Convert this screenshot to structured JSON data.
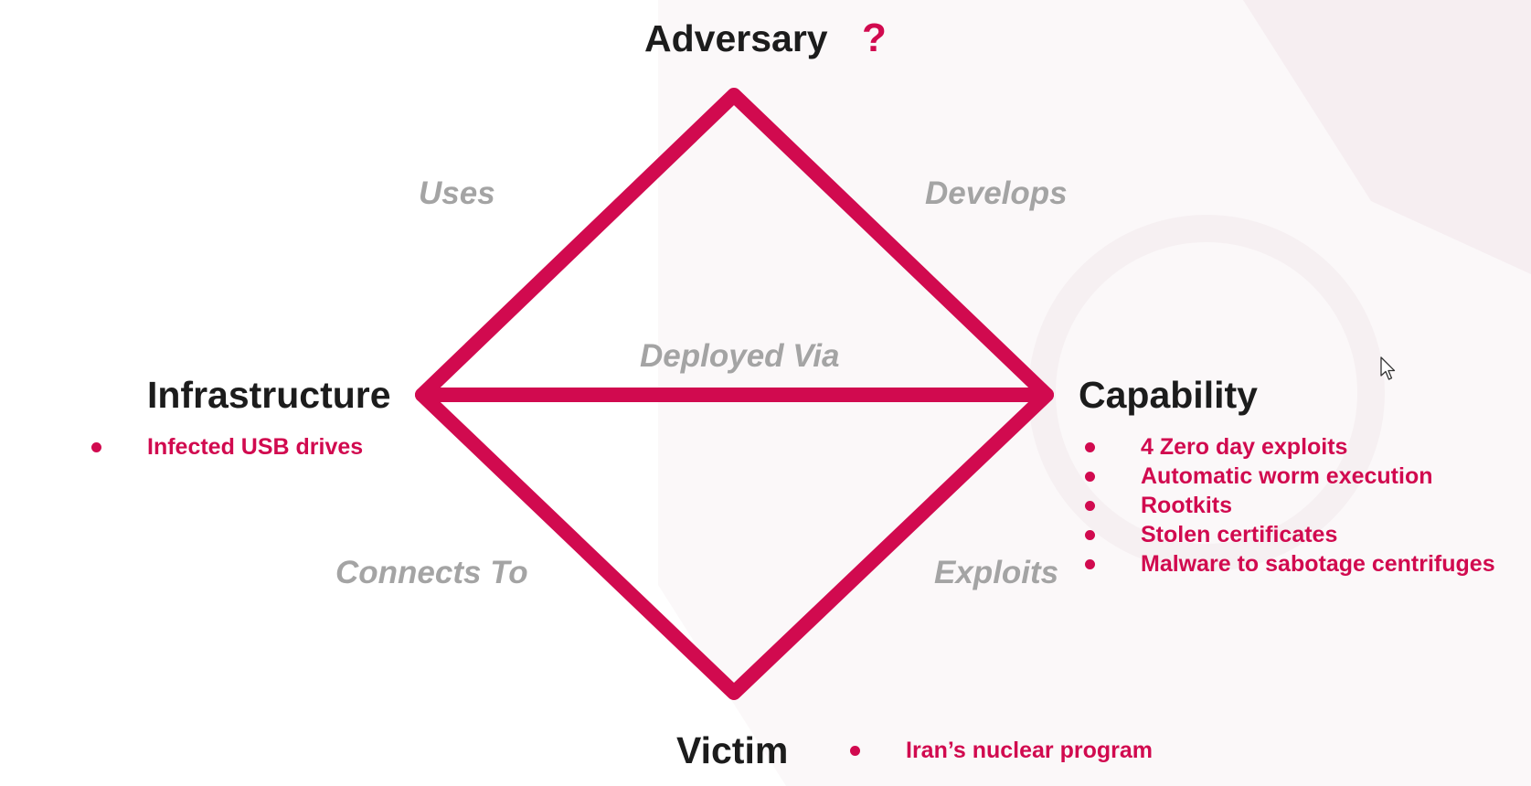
{
  "accent_color": "#d10a4f",
  "nodes": {
    "adversary": {
      "title": "Adversary",
      "marker": "?"
    },
    "infrastructure": {
      "title": "Infrastructure",
      "items": [
        "Infected USB drives"
      ]
    },
    "capability": {
      "title": "Capability",
      "items": [
        "4 Zero day exploits",
        "Automatic worm execution",
        "Rootkits",
        "Stolen certificates",
        "Malware to sabotage centrifuges"
      ]
    },
    "victim": {
      "title": "Victim",
      "items": [
        "Iran’s nuclear program"
      ]
    }
  },
  "edges": {
    "adversary_infrastructure": "Uses",
    "adversary_capability": "Develops",
    "infrastructure_capability": "Deployed Via",
    "infrastructure_victim": "Connects To",
    "capability_victim": "Exploits"
  },
  "icons": {
    "cursor": "mouse-pointer-icon"
  }
}
